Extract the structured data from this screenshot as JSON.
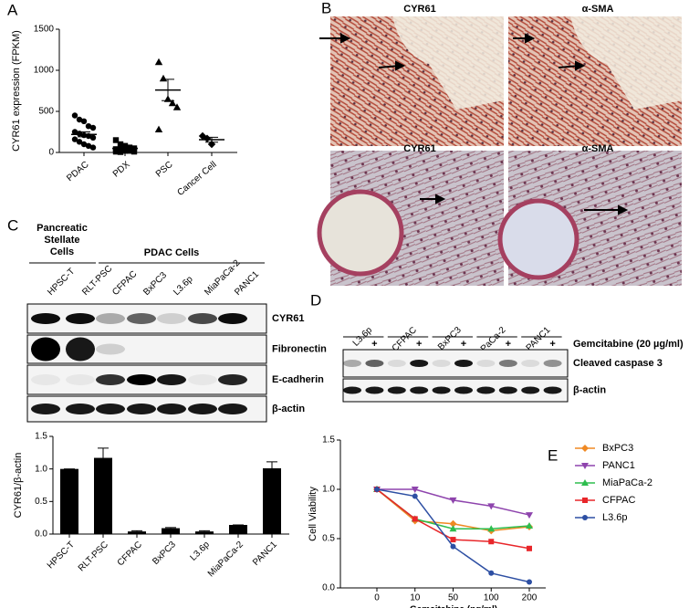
{
  "panel_letters": [
    "A",
    "B",
    "C",
    "D",
    "E"
  ],
  "chart_data": [
    {
      "type": "dot",
      "ylabel": "CYR61 expression (FPKM)",
      "categories": [
        "PDAC",
        "PDX",
        "PSC",
        "Cancer Cell"
      ],
      "groups": [
        [
          450,
          400,
          380,
          320,
          300,
          250,
          230,
          210,
          200,
          180,
          160,
          130,
          100,
          80,
          60
        ],
        [
          150,
          100,
          80,
          60,
          50,
          40,
          30,
          20,
          20,
          10,
          10,
          5
        ],
        [
          1100,
          900,
          650,
          600,
          550,
          280
        ],
        [
          200,
          170,
          100
        ]
      ],
      "markers": [
        "circle",
        "square",
        "triangle",
        "diamond"
      ],
      "means": [
        220,
        50,
        760,
        155
      ],
      "errors": [
        30,
        15,
        130,
        30
      ],
      "color": "#000000",
      "ylim": [
        0,
        1500
      ],
      "yticks": [
        0,
        500,
        1000,
        1500
      ]
    },
    {
      "type": "bar",
      "ylabel": "CYR61/β-actin",
      "categories": [
        "HPSC-T",
        "RLT-PSC",
        "CFPAC",
        "BxPC3",
        "L3.6p",
        "MiaPaCa-2",
        "PANC1"
      ],
      "values": [
        1.0,
        1.17,
        0.04,
        0.09,
        0.04,
        0.14,
        1.01
      ],
      "errors": [
        0,
        0.15,
        0.01,
        0.01,
        0.01,
        0,
        0.1
      ],
      "color": "#000000",
      "ylim": [
        0,
        1.5
      ],
      "yticks": [
        {
          "value": 0,
          "label": "0.0"
        },
        0.5,
        {
          "value": 1,
          "label": "1.0"
        },
        1.5
      ]
    },
    {
      "type": "line",
      "xlabel": "Gemcitabine (ng/ml)",
      "ylabel": "Cell Viability",
      "categories": [
        "0",
        "10",
        "50",
        "100",
        "200"
      ],
      "series": [
        {
          "name": "BxPC3",
          "color": "#f08a24",
          "marker": "diamond",
          "values": [
            1.0,
            0.68,
            0.65,
            0.58,
            0.62
          ]
        },
        {
          "name": "PANC1",
          "color": "#8e44ad",
          "marker": "tri-down",
          "values": [
            1.0,
            1.0,
            0.89,
            0.83,
            0.74
          ]
        },
        {
          "name": "MiaPaCa-2",
          "color": "#2ebd4e",
          "marker": "triangle",
          "values": [
            1.0,
            0.7,
            0.6,
            0.6,
            0.63
          ]
        },
        {
          "name": "CFPAC",
          "color": "#e8262a",
          "marker": "square",
          "values": [
            1.0,
            0.7,
            0.49,
            0.47,
            0.4
          ]
        },
        {
          "name": "L3.6p",
          "color": "#2d4fa3",
          "marker": "circle",
          "values": [
            1.0,
            0.93,
            0.42,
            0.15,
            0.06
          ]
        }
      ],
      "ylim": [
        0,
        1.5
      ],
      "yticks": [
        {
          "value": 0,
          "label": "0.0"
        },
        0.5,
        {
          "value": 1,
          "label": "1.0"
        },
        1.5
      ]
    }
  ],
  "images": {
    "labels": [
      "CYR61",
      "α-SMA",
      "CYR61",
      "α-SMA"
    ]
  },
  "blot_c": {
    "groups": [
      [
        "Pancreatic",
        "Stellate",
        "Cells"
      ],
      [
        "PDAC Cells"
      ]
    ],
    "lanes": [
      "HPSC-T",
      "RLT-PSC",
      "CFPAC",
      "BxPC3",
      "L3.6p",
      "MiaPaCa-2",
      "PANC1"
    ],
    "rows": [
      "CYR61",
      "Fibronectin",
      "E-cadherin",
      "β-actin"
    ]
  },
  "blot_d": {
    "lanes": [
      "L3.6p",
      "CFPAC",
      "BxPC3",
      "MiaPaCa-2",
      "PANC1"
    ],
    "sign": "+",
    "treatment": "Gemcitabine (20 µg/ml)",
    "rows": [
      "Cleaved caspase 3",
      "β-actin"
    ]
  }
}
